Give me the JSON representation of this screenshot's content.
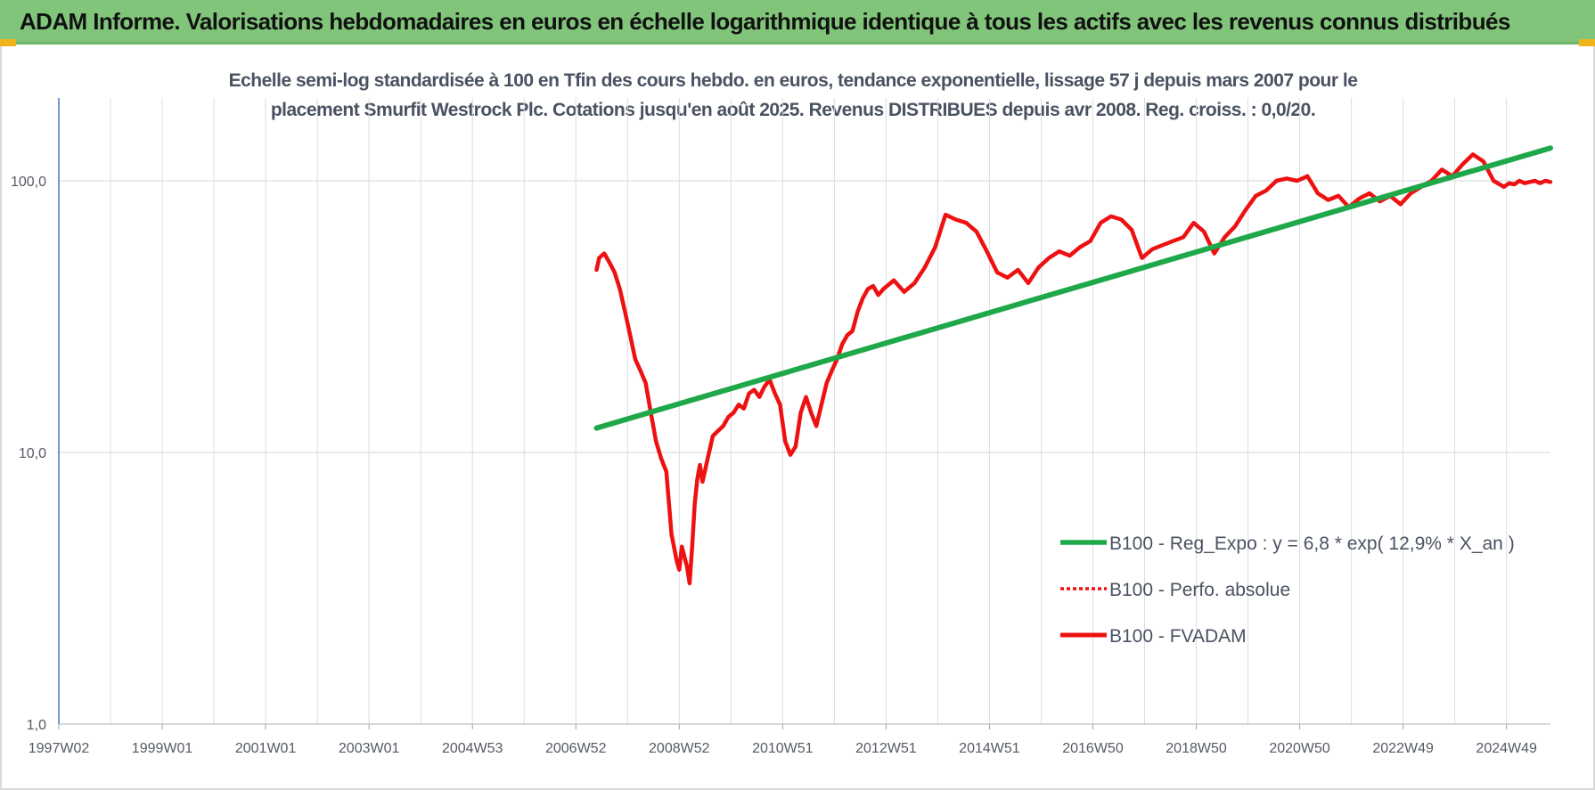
{
  "header": {
    "title": "ADAM Informe. Valorisations hebdomadaires en euros en échelle logarithmique identique à tous les actifs avec les revenus connus distribués"
  },
  "colors": {
    "banner": "#80c57a",
    "corner": "#f2b31b",
    "trend": "#1fa84a",
    "fvadam": "#ee1111",
    "perfo": "#ee1111",
    "grid": "#d9dde3",
    "y_axis": "#4472c4"
  },
  "chart_data": {
    "type": "line",
    "title_line1": "Echelle semi-log standardisée à 100 en Tfin des cours hebdo. en euros, tendance exponentielle, lissage 57 j depuis mars 2007 pour le",
    "title_line2": "placement Smurfit Westrock Plc. Cotations jusqu'en août 2025. Revenus DISTRIBUES depuis avr 2008. Reg. croiss. : 0,0/20.",
    "y_scale": "log",
    "ylim": [
      1,
      200
    ],
    "y_ticks": [
      {
        "value": 1,
        "label": "1,0"
      },
      {
        "value": 10,
        "label": "10,0"
      },
      {
        "value": 100,
        "label": "100,0"
      }
    ],
    "xlim": [
      1997.05,
      2025.9
    ],
    "x_ticks": [
      {
        "value": 1997.05,
        "label": "1997W02"
      },
      {
        "value": 1999.05,
        "label": "1999W01"
      },
      {
        "value": 2001.05,
        "label": "2001W01"
      },
      {
        "value": 2003.05,
        "label": "2003W01"
      },
      {
        "value": 2005.05,
        "label": "2004W53"
      },
      {
        "value": 2007.05,
        "label": "2006W52"
      },
      {
        "value": 2009.05,
        "label": "2008W52"
      },
      {
        "value": 2011.05,
        "label": "2010W51"
      },
      {
        "value": 2013.05,
        "label": "2012W51"
      },
      {
        "value": 2015.05,
        "label": "2014W51"
      },
      {
        "value": 2017.05,
        "label": "2016W50"
      },
      {
        "value": 2019.05,
        "label": "2018W50"
      },
      {
        "value": 2021.05,
        "label": "2020W50"
      },
      {
        "value": 2023.05,
        "label": "2022W49"
      },
      {
        "value": 2025.05,
        "label": "2024W49"
      }
    ],
    "grid": true,
    "legend_position": "bottom-right",
    "series": [
      {
        "name": "B100 - Reg_Expo : y = 6,8 * exp( 12,9% *  X_an )",
        "style": "solid-thick",
        "color": "#1fa84a",
        "x": [
          2007.45,
          2025.9
        ],
        "y": [
          12.3,
          132
        ]
      },
      {
        "name": "B100 - Perfo. absolue",
        "style": "dotted",
        "color": "#ee1111",
        "x": [],
        "y": []
      },
      {
        "name": "B100 - FVADAM",
        "style": "solid",
        "color": "#ee1111",
        "x": [
          2007.45,
          2007.5,
          2007.6,
          2007.7,
          2007.8,
          2007.9,
          2008.0,
          2008.1,
          2008.2,
          2008.3,
          2008.4,
          2008.5,
          2008.6,
          2008.7,
          2008.8,
          2008.9,
          2009.0,
          2009.05,
          2009.1,
          2009.2,
          2009.25,
          2009.3,
          2009.35,
          2009.4,
          2009.45,
          2009.5,
          2009.6,
          2009.7,
          2009.8,
          2009.9,
          2010.0,
          2010.1,
          2010.2,
          2010.3,
          2010.4,
          2010.5,
          2010.6,
          2010.7,
          2010.8,
          2010.9,
          2011.0,
          2011.1,
          2011.2,
          2011.3,
          2011.4,
          2011.5,
          2011.6,
          2011.7,
          2011.8,
          2011.9,
          2012.0,
          2012.1,
          2012.2,
          2012.3,
          2012.4,
          2012.5,
          2012.6,
          2012.7,
          2012.8,
          2012.9,
          2013.0,
          2013.2,
          2013.4,
          2013.6,
          2013.8,
          2014.0,
          2014.2,
          2014.4,
          2014.6,
          2014.8,
          2015.0,
          2015.2,
          2015.4,
          2015.6,
          2015.8,
          2016.0,
          2016.2,
          2016.4,
          2016.6,
          2016.8,
          2017.0,
          2017.2,
          2017.4,
          2017.6,
          2017.8,
          2018.0,
          2018.2,
          2018.4,
          2018.6,
          2018.8,
          2019.0,
          2019.2,
          2019.4,
          2019.6,
          2019.8,
          2020.0,
          2020.2,
          2020.4,
          2020.6,
          2020.8,
          2021.0,
          2021.2,
          2021.4,
          2021.6,
          2021.8,
          2022.0,
          2022.2,
          2022.4,
          2022.6,
          2022.8,
          2023.0,
          2023.2,
          2023.4,
          2023.6,
          2023.8,
          2024.0,
          2024.2,
          2024.4,
          2024.6,
          2024.8,
          2025.0,
          2025.1,
          2025.2,
          2025.3,
          2025.4,
          2025.5,
          2025.6,
          2025.7,
          2025.8,
          2025.9
        ],
        "y": [
          47,
          52,
          54,
          50,
          46,
          40,
          33,
          27,
          22,
          20,
          18,
          14,
          11,
          9.5,
          8.5,
          5.0,
          4.0,
          3.7,
          4.5,
          3.8,
          3.3,
          4.5,
          6.5,
          8.0,
          9.0,
          7.8,
          9.5,
          11.5,
          12.0,
          12.5,
          13.5,
          14.0,
          15.0,
          14.5,
          16.5,
          17.0,
          16.0,
          17.5,
          18.5,
          16.5,
          15.0,
          11.0,
          9.8,
          10.5,
          14.0,
          16.0,
          14.0,
          12.5,
          15.0,
          18.0,
          20.0,
          22.0,
          25.0,
          27.0,
          28.0,
          33.0,
          37.0,
          40.0,
          41.0,
          38.0,
          40.0,
          43.0,
          39.0,
          42.0,
          48.0,
          57.0,
          75.0,
          72.0,
          70.0,
          65.0,
          55.0,
          46.0,
          44.0,
          47.0,
          42.0,
          48.0,
          52.0,
          55.0,
          53.0,
          57.0,
          60.0,
          70.0,
          74.0,
          72.0,
          66.0,
          52.0,
          56.0,
          58.0,
          60.0,
          62.0,
          70.0,
          65.0,
          54.0,
          62.0,
          68.0,
          78.0,
          88.0,
          92.0,
          100.0,
          102.0,
          100.0,
          104.0,
          90.0,
          85.0,
          88.0,
          80.0,
          86.0,
          90.0,
          84.0,
          88.0,
          82.0,
          90.0,
          95.0,
          100.0,
          110.0,
          104.0,
          115.0,
          125.0,
          118.0,
          100.0,
          95.0,
          98.0,
          97.0,
          100.0,
          98.0,
          99.0,
          100.0,
          98.0,
          100.0,
          99.0
        ]
      }
    ]
  }
}
